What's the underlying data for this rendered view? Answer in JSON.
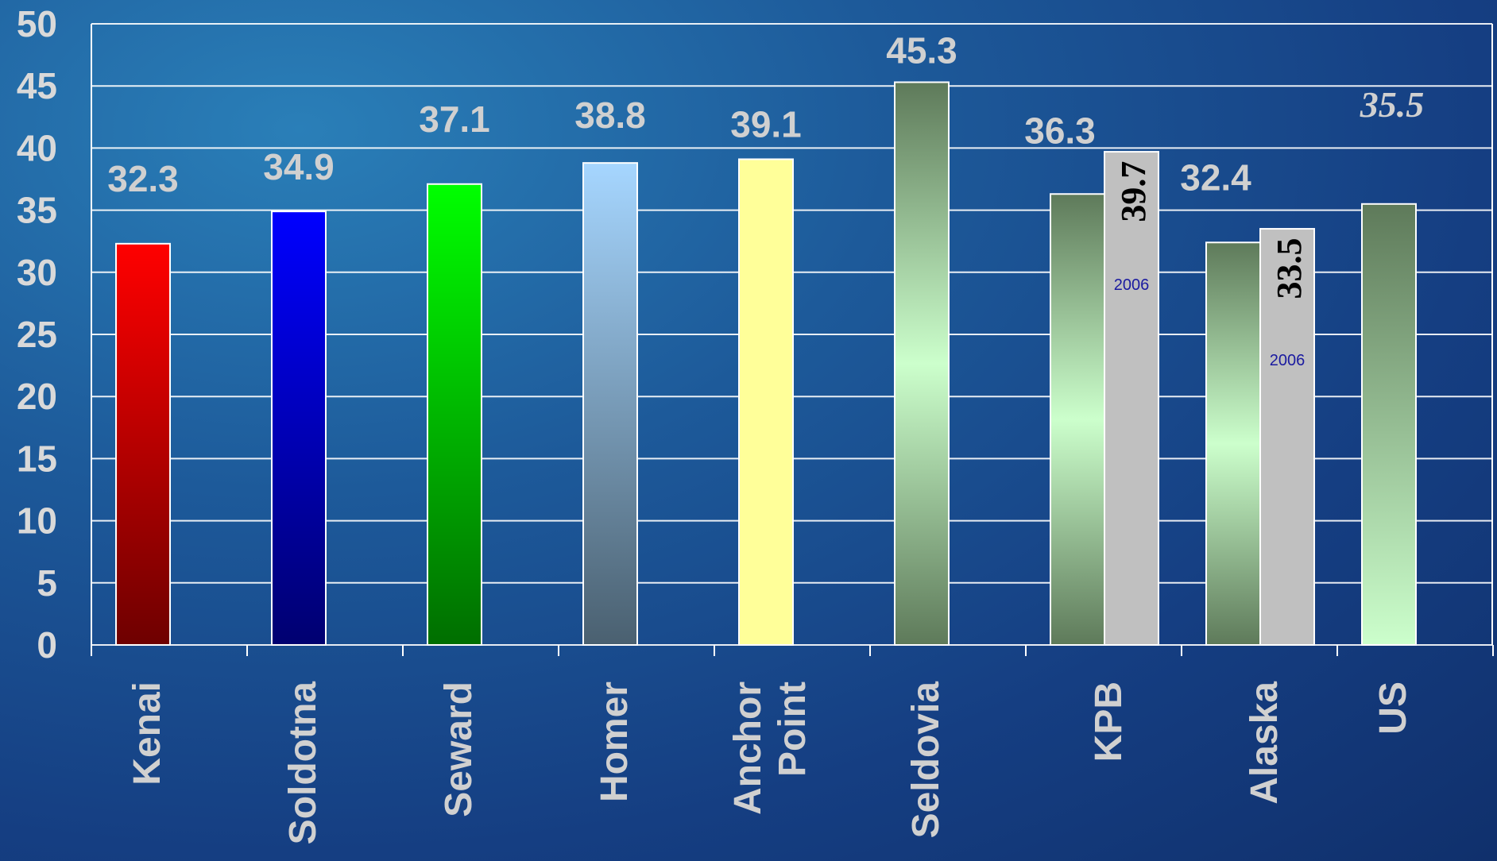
{
  "chart_data": {
    "type": "bar",
    "categories": [
      "Kenai",
      "Soldotna",
      "Seward",
      "Homer",
      "Anchor Point",
      "Seldovia",
      "KPB",
      "Alaska",
      "US"
    ],
    "category_lines": [
      [
        "Kenai"
      ],
      [
        "Soldotna"
      ],
      [
        "Seward"
      ],
      [
        "Homer"
      ],
      [
        "Anchor",
        "Point"
      ],
      [
        "Seldovia"
      ],
      [
        "KPB"
      ],
      [
        "Alaska"
      ],
      [
        "US"
      ]
    ],
    "values": [
      32.3,
      34.9,
      37.1,
      38.8,
      39.1,
      45.3,
      36.3,
      32.4,
      35.5
    ],
    "value_labels": [
      "32.3",
      "34.9",
      "37.1",
      "38.8",
      "39.1",
      "45.3",
      "36.3",
      "32.4",
      "35.5"
    ],
    "secondary_bars": [
      {
        "category": "KPB",
        "value": 39.7,
        "label": "39.7",
        "year": "2006"
      },
      {
        "category": "Alaska",
        "value": 33.5,
        "label": "33.5",
        "year": "2006"
      }
    ],
    "ylim": [
      0,
      50
    ],
    "yticks": [
      "0",
      "5",
      "10",
      "15",
      "20",
      "25",
      "30",
      "35",
      "40",
      "45",
      "50"
    ],
    "grid": true,
    "title": "",
    "xlabel": "",
    "ylabel": "",
    "bar_colors": [
      [
        "#ff0000",
        "#6e0000"
      ],
      [
        "#0000ff",
        "#000070"
      ],
      [
        "#00ff00",
        "#006e00"
      ],
      [
        "#a6d6ff",
        "#4a6070"
      ],
      [
        "#ffff99",
        "#ffff99"
      ],
      [
        "#5e7a5a",
        "#ccffcc",
        "#5e7a5a"
      ],
      [
        "#5e7a5a",
        "#ccffcc",
        "#5e7a5a"
      ],
      [
        "#5e7a5a",
        "#ccffcc",
        "#5e7a5a"
      ],
      [
        "#5e7a5a",
        "#ccffcc"
      ]
    ],
    "secondary_color": "#c0c0c0"
  }
}
